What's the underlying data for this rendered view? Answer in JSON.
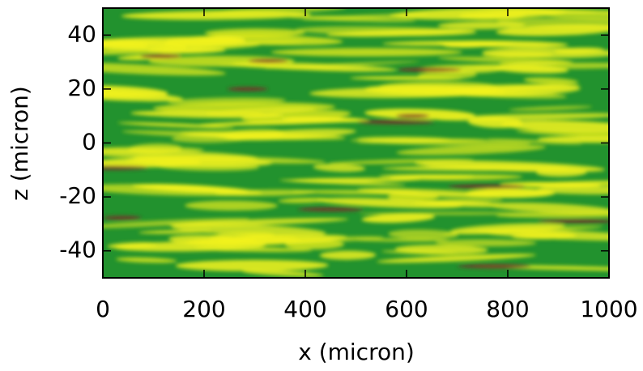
{
  "chart_data": {
    "type": "heatmap",
    "xlabel": "x (micron)",
    "ylabel": "z (micron)",
    "xlim": [
      0,
      1000
    ],
    "ylim": [
      -50,
      50
    ],
    "xticks": [
      0,
      200,
      400,
      600,
      800,
      1000
    ],
    "yticks": [
      -40,
      -20,
      0,
      20,
      40
    ],
    "colors": [
      "#22922e",
      "#f2f21e",
      "#7e2a2a"
    ]
  }
}
